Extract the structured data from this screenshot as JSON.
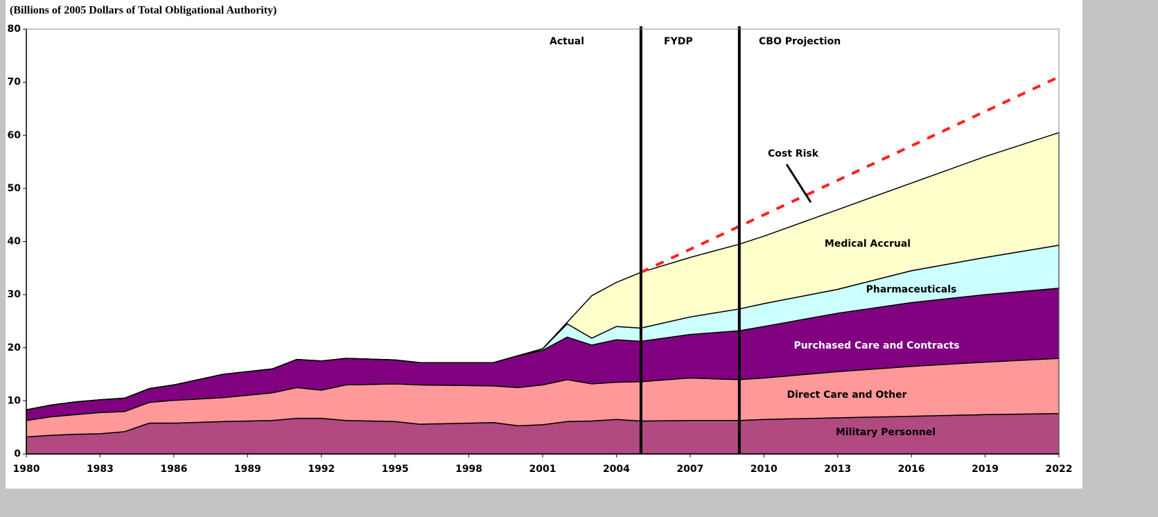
{
  "chart_data": {
    "type": "stacked_area",
    "title": "(Billions of 2005 Dollars of Total Obligational Authority)",
    "x": [
      1980,
      1981,
      1982,
      1983,
      1984,
      1985,
      1986,
      1988,
      1990,
      1991,
      1992,
      1993,
      1995,
      1996,
      1999,
      2000,
      2001,
      2002,
      2003,
      2004,
      2005,
      2007,
      2009,
      2010,
      2013,
      2016,
      2019,
      2022
    ],
    "series": [
      {
        "name": "Military Personnel",
        "color": "#b04a80",
        "values": [
          3.2,
          3.5,
          3.7,
          3.8,
          4.2,
          5.8,
          5.8,
          6.1,
          6.3,
          6.7,
          6.7,
          6.3,
          6.1,
          5.6,
          5.9,
          5.3,
          5.5,
          6.1,
          6.2,
          6.5,
          6.2,
          6.3,
          6.3,
          6.5,
          6.8,
          7.1,
          7.4,
          7.6
        ]
      },
      {
        "name": "Direct Care and Other",
        "color": "#ff9999",
        "values": [
          3.1,
          3.5,
          3.7,
          4.0,
          3.8,
          3.9,
          4.3,
          4.5,
          5.2,
          5.8,
          5.3,
          6.7,
          7.1,
          7.4,
          6.9,
          7.2,
          7.5,
          7.9,
          7.0,
          7.0,
          7.4,
          8.0,
          7.7,
          7.8,
          8.7,
          9.4,
          9.9,
          10.4
        ]
      },
      {
        "name": "Purchased Care and Contracts",
        "color": "#800080",
        "values": [
          2.0,
          2.2,
          2.4,
          2.4,
          2.5,
          2.6,
          2.9,
          4.4,
          4.5,
          5.3,
          5.5,
          5.0,
          4.5,
          4.2,
          4.4,
          6.0,
          6.5,
          8.0,
          7.3,
          8.0,
          7.6,
          8.2,
          9.2,
          9.7,
          11.0,
          12.0,
          12.7,
          13.2
        ]
      },
      {
        "name": "Pharmaceuticals",
        "color": "#ccffff",
        "values": [
          0,
          0,
          0,
          0,
          0,
          0,
          0,
          0,
          0,
          0,
          0,
          0,
          0,
          0,
          0,
          0,
          0.3,
          2.5,
          1.3,
          2.5,
          2.5,
          3.3,
          4.1,
          4.3,
          4.5,
          6.0,
          7.0,
          8.1
        ]
      },
      {
        "name": "Medical Accrual",
        "color": "#ffffcc",
        "values": [
          0,
          0,
          0,
          0,
          0,
          0,
          0,
          0,
          0,
          0,
          0,
          0,
          0,
          0,
          0,
          0,
          0,
          0.3,
          8.0,
          8.3,
          10.5,
          11.2,
          12.2,
          12.7,
          15.0,
          16.5,
          19.0,
          21.2
        ]
      }
    ],
    "cost_risk": {
      "name": "Cost Risk",
      "color": "#ff2020",
      "x": [
        2005,
        2022
      ],
      "values": [
        34.2,
        71
      ]
    },
    "dividers": [
      2005,
      2009
    ],
    "period_labels": [
      "Actual",
      "FYDP",
      "CBO Projection"
    ],
    "xlim": [
      1980,
      2022
    ],
    "xticks": [
      1980,
      1983,
      1986,
      1989,
      1992,
      1995,
      1998,
      2001,
      2004,
      2007,
      2010,
      2013,
      2016,
      2019,
      2022
    ],
    "ylim": [
      0,
      80
    ],
    "yticks": [
      0,
      10,
      20,
      30,
      40,
      50,
      60,
      70,
      80
    ]
  }
}
